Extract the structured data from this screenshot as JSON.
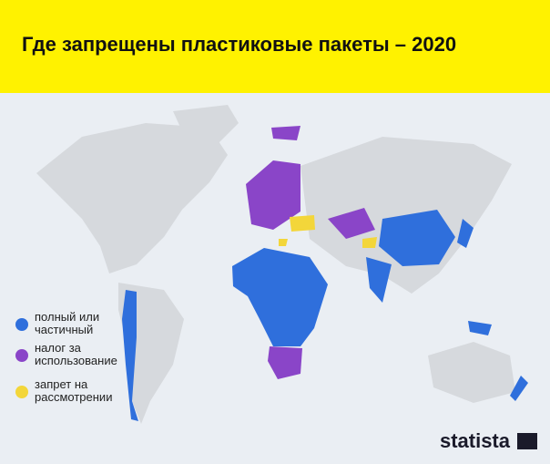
{
  "header": {
    "title": "Где запрещены пластиковые пакеты – 2020"
  },
  "legend": {
    "items": [
      {
        "lines": [
          "полный или",
          "частичный"
        ],
        "color": "#2f6fdc"
      },
      {
        "lines": [
          "налог за",
          "использование"
        ],
        "color": "#8a45c8"
      },
      {
        "lines": [
          "запрет на",
          "рассмотрении"
        ],
        "color": "#f3d63a"
      }
    ]
  },
  "brand": "statista"
}
